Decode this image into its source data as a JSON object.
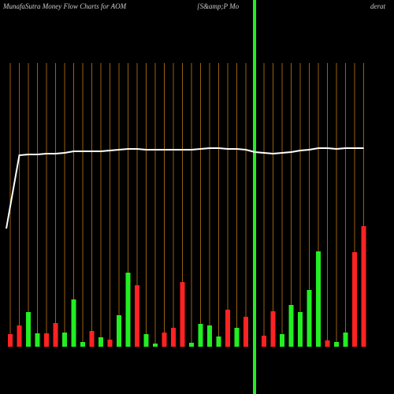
{
  "chart_data": {
    "type": "bar",
    "title": "MunafaSutra  Money Flow  Charts for AOM",
    "annotations": [
      "[S&amp;P Mo",
      "derat"
    ],
    "categories": [
      null,
      null,
      null,
      null,
      null,
      null,
      null,
      null,
      null,
      null,
      null,
      null,
      null,
      null,
      null,
      null,
      null,
      null,
      null,
      null,
      null,
      null,
      null,
      null,
      null,
      null,
      null,
      null,
      null,
      null,
      null,
      null,
      null,
      null,
      null,
      null,
      null,
      null,
      null,
      null
    ],
    "values": [
      16,
      27,
      44,
      17,
      17,
      30,
      18,
      60,
      6,
      20,
      12,
      9,
      40,
      94,
      78,
      16,
      4,
      18,
      24,
      82,
      5,
      29,
      27,
      13,
      47,
      24,
      38,
      null,
      14,
      45,
      16,
      53,
      44,
      72,
      121,
      8,
      6,
      18,
      120,
      153
    ],
    "colors": [
      "#ff2222",
      "#ff2222",
      "#22ee22",
      "#22ee22",
      "#ff2222",
      "#ff2222",
      "#22ee22",
      "#22ee22",
      "#22ee22",
      "#ff2222",
      "#22ee22",
      "#ff2222",
      "#22ee22",
      "#22ee22",
      "#ff2222",
      "#22ee22",
      "#22ee22",
      "#ff2222",
      "#ff2222",
      "#ff2222",
      "#22ee22",
      "#22ee22",
      "#22ee22",
      "#22ee22",
      "#ff2222",
      "#22ee22",
      "#ff2222",
      "#22ee22",
      "#ff2222",
      "#ff2222",
      "#22ee22",
      "#22ee22",
      "#22ee22",
      "#22ee22",
      "#22ee22",
      "#ff2222",
      "#22ee22",
      "#22ee22",
      "#ff2222",
      "#ff2222"
    ],
    "ylim": [
      0,
      360
    ],
    "line": {
      "color": "#ffffff",
      "values": [
        150,
        243,
        244,
        244,
        245,
        245,
        246,
        248,
        248,
        248,
        248,
        249,
        250,
        251,
        251,
        250,
        250,
        250,
        250,
        250,
        250,
        251,
        252,
        252,
        251,
        251,
        250,
        247,
        246,
        245,
        246,
        247,
        249,
        250,
        252,
        252,
        251,
        252,
        252,
        252
      ]
    },
    "grid": true,
    "grid_color": "#c07a10"
  }
}
